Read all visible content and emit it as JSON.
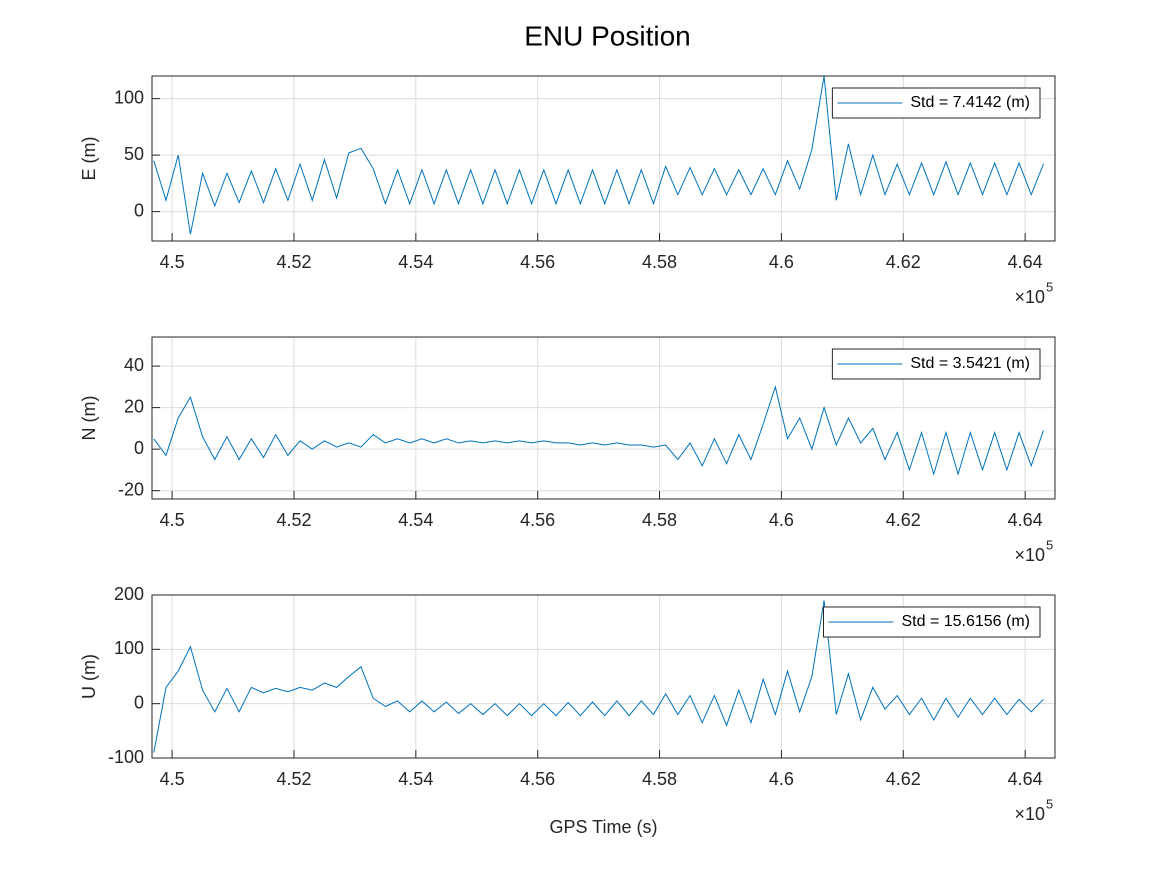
{
  "chart_data": [
    {
      "type": "line",
      "title": "ENU Position",
      "ylabel": "E (m)",
      "x": [
        449700,
        449900,
        450100,
        450300,
        450500,
        450700,
        450900,
        451100,
        451300,
        451500,
        451700,
        451900,
        452100,
        452300,
        452500,
        452700,
        452900,
        453100,
        453300,
        453500,
        453700,
        453900,
        454100,
        454300,
        454500,
        454700,
        454900,
        455100,
        455300,
        455500,
        455700,
        455900,
        456100,
        456300,
        456500,
        456700,
        456900,
        457100,
        457300,
        457500,
        457700,
        457900,
        458100,
        458300,
        458500,
        458700,
        458900,
        459100,
        459300,
        459500,
        459700,
        459900,
        460100,
        460300,
        460500,
        460700,
        460900,
        461100,
        461300,
        461500,
        461700,
        461900,
        462100,
        462300,
        462500,
        462700,
        462900,
        463100,
        463300,
        463500,
        463700,
        463900,
        464100,
        464300
      ],
      "series": [
        {
          "name": "Std = 7.4142 (m)",
          "color": "#0072BD",
          "values": [
            45,
            10,
            50,
            -20,
            34,
            5,
            34,
            8,
            36,
            8,
            38,
            10,
            42,
            10,
            46,
            12,
            52,
            56,
            38,
            7,
            37,
            7,
            37,
            7,
            37,
            7,
            37,
            7,
            37,
            7,
            37,
            7,
            37,
            7,
            37,
            7,
            37,
            7,
            37,
            7,
            37,
            7,
            40,
            15,
            39,
            15,
            38,
            15,
            37,
            15,
            38,
            15,
            45,
            20,
            55,
            120,
            10,
            60,
            15,
            50,
            15,
            42,
            15,
            43,
            15,
            44,
            15,
            43,
            15,
            43,
            15,
            43,
            15,
            42
          ]
        }
      ],
      "xlim": [
        449670,
        464490
      ],
      "ylim": [
        -26,
        120
      ],
      "yticks": [
        0,
        50,
        100
      ],
      "xticks": [
        {
          "value": 450000,
          "label": "4.5"
        },
        {
          "value": 452000,
          "label": "4.52"
        },
        {
          "value": 454000,
          "label": "4.54"
        },
        {
          "value": 456000,
          "label": "4.56"
        },
        {
          "value": 458000,
          "label": "4.58"
        },
        {
          "value": 460000,
          "label": "4.6"
        },
        {
          "value": 462000,
          "label": "4.62"
        },
        {
          "value": 464000,
          "label": "4.64"
        }
      ],
      "x_multiplier": "×10",
      "x_exponent": "5",
      "grid": true,
      "legend": "northeast"
    },
    {
      "type": "line",
      "ylabel": "N (m)",
      "x": [
        449700,
        449900,
        450100,
        450300,
        450500,
        450700,
        450900,
        451100,
        451300,
        451500,
        451700,
        451900,
        452100,
        452300,
        452500,
        452700,
        452900,
        453100,
        453300,
        453500,
        453700,
        453900,
        454100,
        454300,
        454500,
        454700,
        454900,
        455100,
        455300,
        455500,
        455700,
        455900,
        456100,
        456300,
        456500,
        456700,
        456900,
        457100,
        457300,
        457500,
        457700,
        457900,
        458100,
        458300,
        458500,
        458700,
        458900,
        459100,
        459300,
        459500,
        459700,
        459900,
        460100,
        460300,
        460500,
        460700,
        460900,
        461100,
        461300,
        461500,
        461700,
        461900,
        462100,
        462300,
        462500,
        462700,
        462900,
        463100,
        463300,
        463500,
        463700,
        463900,
        464100,
        464300
      ],
      "series": [
        {
          "name": "Std = 3.5421 (m)",
          "color": "#0072BD",
          "values": [
            5,
            -3,
            15,
            25,
            6,
            -5,
            6,
            -5,
            5,
            -4,
            7,
            -3,
            4,
            0,
            4,
            1,
            3,
            1,
            7,
            3,
            5,
            3,
            5,
            3,
            5,
            3,
            4,
            3,
            4,
            3,
            4,
            3,
            4,
            3,
            3,
            2,
            3,
            2,
            3,
            2,
            2,
            1,
            2,
            -5,
            3,
            -8,
            5,
            -7,
            7,
            -5,
            12,
            30,
            5,
            15,
            0,
            20,
            2,
            15,
            3,
            10,
            -5,
            8,
            -10,
            8,
            -12,
            8,
            -12,
            8,
            -10,
            8,
            -10,
            8,
            -8,
            9
          ]
        }
      ],
      "xlim": [
        449670,
        464490
      ],
      "ylim": [
        -24,
        54
      ],
      "yticks": [
        -20,
        0,
        20,
        40
      ],
      "xticks": [
        {
          "value": 450000,
          "label": "4.5"
        },
        {
          "value": 452000,
          "label": "4.52"
        },
        {
          "value": 454000,
          "label": "4.54"
        },
        {
          "value": 456000,
          "label": "4.56"
        },
        {
          "value": 458000,
          "label": "4.58"
        },
        {
          "value": 460000,
          "label": "4.6"
        },
        {
          "value": 462000,
          "label": "4.62"
        },
        {
          "value": 464000,
          "label": "4.64"
        }
      ],
      "x_multiplier": "×10",
      "x_exponent": "5",
      "grid": true,
      "legend": "northeast"
    },
    {
      "type": "line",
      "ylabel": "U (m)",
      "xlabel": "GPS Time (s)",
      "x": [
        449700,
        449900,
        450100,
        450300,
        450500,
        450700,
        450900,
        451100,
        451300,
        451500,
        451700,
        451900,
        452100,
        452300,
        452500,
        452700,
        452900,
        453100,
        453300,
        453500,
        453700,
        453900,
        454100,
        454300,
        454500,
        454700,
        454900,
        455100,
        455300,
        455500,
        455700,
        455900,
        456100,
        456300,
        456500,
        456700,
        456900,
        457100,
        457300,
        457500,
        457700,
        457900,
        458100,
        458300,
        458500,
        458700,
        458900,
        459100,
        459300,
        459500,
        459700,
        459900,
        460100,
        460300,
        460500,
        460700,
        460900,
        461100,
        461300,
        461500,
        461700,
        461900,
        462100,
        462300,
        462500,
        462700,
        462900,
        463100,
        463300,
        463500,
        463700,
        463900,
        464100,
        464300
      ],
      "series": [
        {
          "name": "Std = 15.6156 (m)",
          "color": "#0072BD",
          "values": [
            -90,
            30,
            60,
            105,
            25,
            -15,
            28,
            -15,
            30,
            20,
            28,
            22,
            30,
            25,
            38,
            30,
            50,
            68,
            10,
            -5,
            5,
            -15,
            5,
            -15,
            3,
            -18,
            0,
            -20,
            0,
            -22,
            0,
            -22,
            0,
            -22,
            2,
            -22,
            3,
            -22,
            5,
            -22,
            5,
            -20,
            18,
            -20,
            15,
            -35,
            15,
            -40,
            25,
            -35,
            45,
            -20,
            60,
            -15,
            50,
            190,
            -20,
            55,
            -30,
            30,
            -10,
            15,
            -20,
            10,
            -30,
            10,
            -25,
            10,
            -20,
            10,
            -20,
            8,
            -15,
            8
          ]
        }
      ],
      "xlim": [
        449670,
        464490
      ],
      "ylim": [
        -100,
        200
      ],
      "yticks": [
        -100,
        0,
        100,
        200
      ],
      "xticks": [
        {
          "value": 450000,
          "label": "4.5"
        },
        {
          "value": 452000,
          "label": "4.52"
        },
        {
          "value": 454000,
          "label": "4.54"
        },
        {
          "value": 456000,
          "label": "4.56"
        },
        {
          "value": 458000,
          "label": "4.58"
        },
        {
          "value": 460000,
          "label": "4.6"
        },
        {
          "value": 462000,
          "label": "4.62"
        },
        {
          "value": 464000,
          "label": "4.64"
        }
      ],
      "x_multiplier": "×10",
      "x_exponent": "5",
      "grid": true,
      "legend": "northeast"
    }
  ]
}
